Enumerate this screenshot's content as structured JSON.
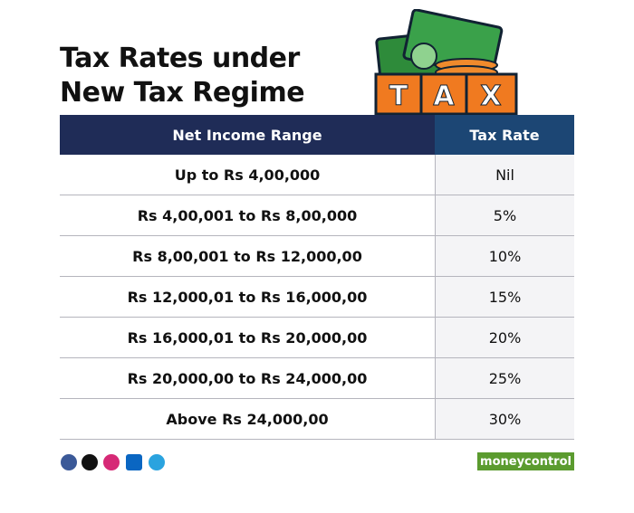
{
  "header": {
    "title": [
      "Tax Rates under",
      "New Tax Regime"
    ]
  },
  "illustration": {
    "letters": [
      "T",
      "A",
      "X"
    ]
  },
  "table": {
    "columns": [
      "Net Income Range",
      "Tax Rate"
    ],
    "rows": [
      [
        "Up to Rs 4,00,000",
        "Nil"
      ],
      [
        "Rs 4,00,001 to Rs 8,00,000",
        "5%"
      ],
      [
        "Rs 8,00,001 to Rs 12,000,00",
        "10%"
      ],
      [
        "Rs 12,000,01 to Rs 16,000,00",
        "15%"
      ],
      [
        "Rs 16,000,01 to Rs 20,000,00",
        "20%"
      ],
      [
        "Rs 20,000,00 to Rs 24,000,00",
        "25%"
      ],
      [
        "Above Rs 24,000,00",
        "30%"
      ]
    ]
  },
  "footer": {
    "brand": "moneycontrol"
  }
}
